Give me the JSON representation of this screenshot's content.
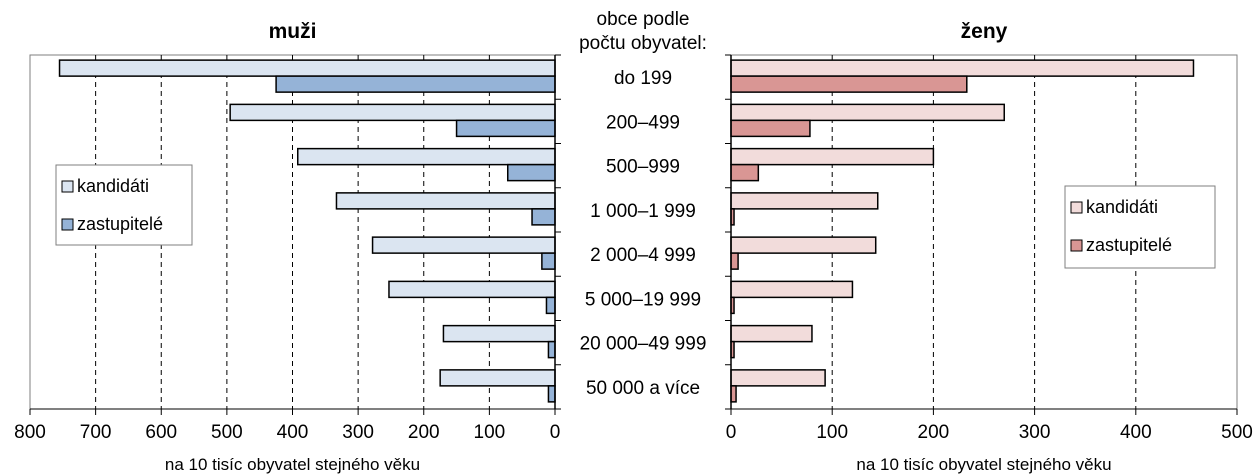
{
  "chart_data": [
    {
      "type": "bar",
      "orientation": "horizontal",
      "title": "muži",
      "xlabel": "na 10 tisíc obyvatel stejného věku",
      "xlim": [
        0,
        800
      ],
      "xticks": [
        800,
        700,
        600,
        500,
        400,
        300,
        200,
        100,
        0
      ],
      "x_reversed": true,
      "grid": "vertical dashed",
      "legend_position": "left",
      "categories": [
        "do 199",
        "200–499",
        "500–999",
        "1 000–1 999",
        "2 000–4 999",
        "5 000–19 999",
        "20 000–49 999",
        "50 000 a více"
      ],
      "series": [
        {
          "name": "kandidáti",
          "color": "#dbe5f1",
          "values": [
            755,
            495,
            392,
            333,
            278,
            253,
            170,
            175
          ]
        },
        {
          "name": "zastupitelé",
          "color": "#95b3d7",
          "values": [
            425,
            150,
            72,
            35,
            20,
            13,
            10,
            10
          ]
        }
      ]
    },
    {
      "type": "bar",
      "orientation": "horizontal",
      "title": "ženy",
      "xlabel": "na 10 tisíc obyvatel stejného věku",
      "xlim": [
        0,
        500
      ],
      "xticks": [
        0,
        100,
        200,
        300,
        400,
        500
      ],
      "grid": "vertical dashed",
      "legend_position": "right",
      "categories": [
        "do 199",
        "200–499",
        "500–999",
        "1 000–1 999",
        "2 000–4 999",
        "5 000–19 999",
        "20 000–49 999",
        "50 000 a více"
      ],
      "series": [
        {
          "name": "kandidáti",
          "color": "#f2dcdb",
          "values": [
            457,
            270,
            200,
            145,
            143,
            120,
            80,
            93
          ]
        },
        {
          "name": "zastupitelé",
          "color": "#d99694",
          "values": [
            233,
            78,
            27,
            3,
            7,
            3,
            3,
            5
          ]
        }
      ]
    }
  ],
  "center_header": [
    "obce podle",
    "počtu obyvatel:"
  ]
}
